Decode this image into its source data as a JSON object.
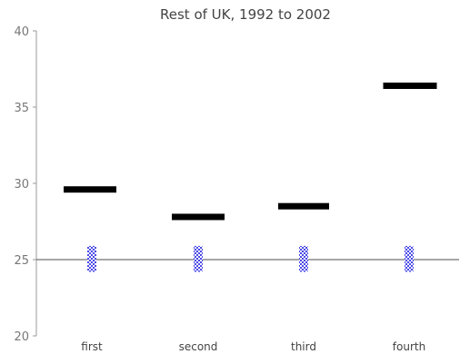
{
  "chart_data": {
    "type": "scatter",
    "title": "Rest of UK, 1992 to 2002",
    "xlabel": "",
    "ylabel": "",
    "categories": [
      "first",
      "second",
      "third",
      "fourth"
    ],
    "ylim": [
      20,
      40
    ],
    "yticks": [
      20,
      25,
      30,
      35,
      40
    ],
    "reference_line": 25,
    "series": [
      {
        "marker": "black-dash",
        "values": [
          29.6,
          27.8,
          28.5,
          36.4
        ]
      },
      {
        "marker": "blue-checkered-bar",
        "values": [
          25,
          25,
          25,
          25
        ],
        "range_low": [
          24.2,
          24.2,
          24.2,
          24.2
        ],
        "range_high": [
          25.9,
          25.9,
          25.9,
          25.9
        ]
      }
    ],
    "grid": false,
    "legend": "none"
  },
  "colors": {
    "axis": "#9a9a9a",
    "reference_line": "#707070",
    "dash": "#000000",
    "checker": "#4a4ae6",
    "text": "#444444"
  }
}
